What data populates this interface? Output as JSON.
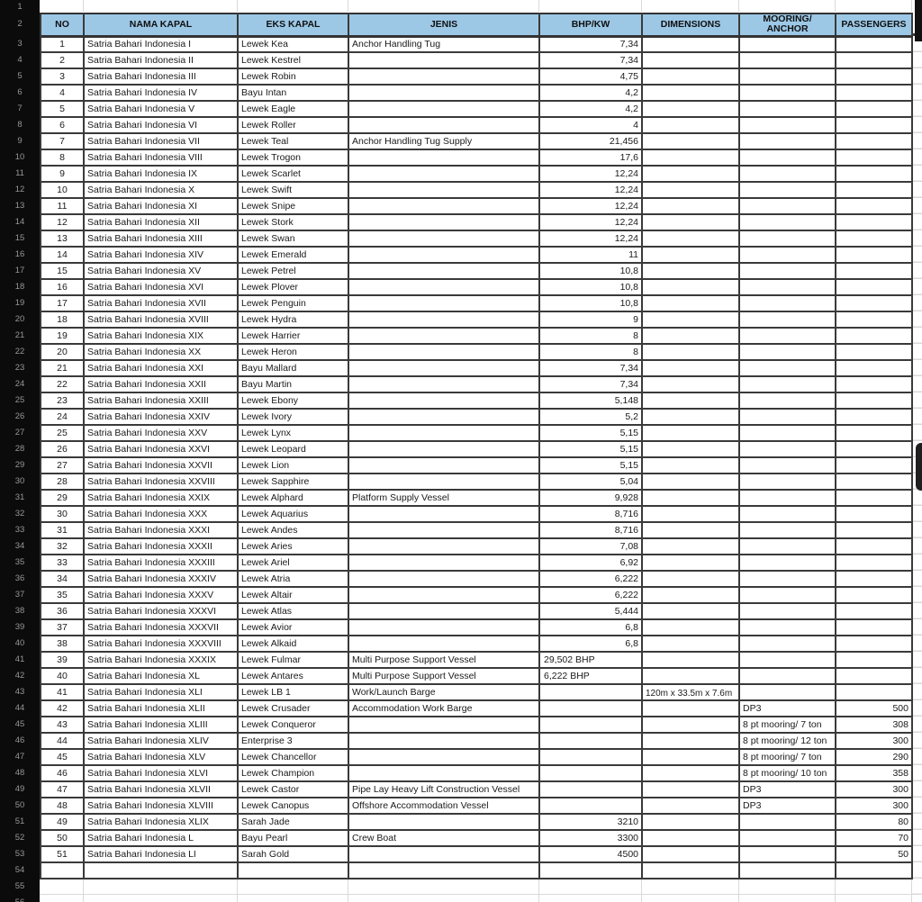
{
  "sheet": {
    "gutter_rows": [
      "1",
      "2",
      "3",
      "4",
      "5",
      "6",
      "7",
      "8",
      "9",
      "10",
      "11",
      "12",
      "13",
      "14",
      "15",
      "16",
      "17",
      "18",
      "19",
      "20",
      "21",
      "22",
      "23",
      "24",
      "25",
      "26",
      "27",
      "28",
      "29",
      "30",
      "31",
      "32",
      "33",
      "34",
      "35",
      "36",
      "37",
      "38",
      "39",
      "40",
      "41",
      "42",
      "43",
      "44",
      "45",
      "46",
      "47",
      "48",
      "49",
      "50",
      "51",
      "52",
      "53",
      "54",
      "55",
      "56"
    ],
    "header": {
      "no": "NO",
      "nama": "NAMA KAPAL",
      "eks": "EKS KAPAL",
      "jenis": "JENIS",
      "bhp": "BHP/KW",
      "dimensions": "DIMENSIONS",
      "mooring": "MOORING/\nANCHOR",
      "passengers": "PASSENGERS"
    },
    "colors": {
      "header_fill": "#9cc8e6",
      "grid_border": "#3a3a3a",
      "gutter_bg": "#0b0b0b"
    },
    "rows": [
      {
        "no": "1",
        "nama": "Satria Bahari Indonesia I",
        "eks": "Lewek Kea",
        "jenis": "Anchor Handling Tug",
        "bhp": "7,34"
      },
      {
        "no": "2",
        "nama": "Satria Bahari Indonesia II",
        "eks": "Lewek Kestrel",
        "bhp": "7,34"
      },
      {
        "no": "3",
        "nama": "Satria Bahari Indonesia III",
        "eks": "Lewek Robin",
        "bhp": "4,75"
      },
      {
        "no": "4",
        "nama": "Satria Bahari Indonesia IV",
        "eks": "Bayu Intan",
        "bhp": "4,2"
      },
      {
        "no": "5",
        "nama": "Satria Bahari Indonesia V",
        "eks": "Lewek Eagle",
        "bhp": "4,2"
      },
      {
        "no": "6",
        "nama": "Satria Bahari Indonesia VI",
        "eks": "Lewek Roller",
        "bhp": "4"
      },
      {
        "no": "7",
        "nama": "Satria Bahari Indonesia VII",
        "eks": "Lewek Teal",
        "jenis": "Anchor Handling Tug Supply",
        "bhp": "21,456"
      },
      {
        "no": "8",
        "nama": "Satria Bahari Indonesia VIII",
        "eks": "Lewek Trogon",
        "bhp": "17,6"
      },
      {
        "no": "9",
        "nama": "Satria Bahari Indonesia IX",
        "eks": "Lewek Scarlet",
        "bhp": "12,24"
      },
      {
        "no": "10",
        "nama": "Satria Bahari Indonesia X",
        "eks": "Lewek Swift",
        "bhp": "12,24"
      },
      {
        "no": "11",
        "nama": "Satria Bahari Indonesia XI",
        "eks": "Lewek Snipe",
        "bhp": "12,24"
      },
      {
        "no": "12",
        "nama": "Satria Bahari Indonesia XII",
        "eks": "Lewek Stork",
        "bhp": "12,24"
      },
      {
        "no": "13",
        "nama": "Satria Bahari Indonesia XIII",
        "eks": "Lewek Swan",
        "bhp": "12,24"
      },
      {
        "no": "14",
        "nama": "Satria Bahari Indonesia XIV",
        "eks": "Lewek Emerald",
        "bhp": "11"
      },
      {
        "no": "15",
        "nama": "Satria Bahari Indonesia XV",
        "eks": "Lewek Petrel",
        "bhp": "10,8"
      },
      {
        "no": "16",
        "nama": "Satria Bahari Indonesia XVI",
        "eks": "Lewek Plover",
        "bhp": "10,8"
      },
      {
        "no": "17",
        "nama": "Satria Bahari Indonesia XVII",
        "eks": "Lewek Penguin",
        "bhp": "10,8"
      },
      {
        "no": "18",
        "nama": "Satria Bahari Indonesia XVIII",
        "eks": "Lewek Hydra",
        "bhp": "9"
      },
      {
        "no": "19",
        "nama": "Satria Bahari Indonesia XIX",
        "eks": "Lewek Harrier",
        "bhp": "8"
      },
      {
        "no": "20",
        "nama": "Satria Bahari Indonesia XX",
        "eks": "Lewek Heron",
        "bhp": "8"
      },
      {
        "no": "21",
        "nama": "Satria Bahari Indonesia XXI",
        "eks": "Bayu Mallard",
        "bhp": "7,34"
      },
      {
        "no": "22",
        "nama": "Satria Bahari Indonesia XXII",
        "eks": "Bayu Martin",
        "bhp": "7,34"
      },
      {
        "no": "23",
        "nama": "Satria Bahari Indonesia XXIII",
        "eks": "Lewek Ebony",
        "bhp": "5,148"
      },
      {
        "no": "24",
        "nama": "Satria Bahari Indonesia XXIV",
        "eks": "Lewek Ivory",
        "bhp": "5,2"
      },
      {
        "no": "25",
        "nama": "Satria Bahari Indonesia XXV",
        "eks": "Lewek Lynx",
        "bhp": "5,15"
      },
      {
        "no": "26",
        "nama": "Satria Bahari Indonesia XXVI",
        "eks": "Lewek Leopard",
        "bhp": "5,15"
      },
      {
        "no": "27",
        "nama": "Satria Bahari Indonesia XXVII",
        "eks": "Lewek Lion",
        "bhp": "5,15"
      },
      {
        "no": "28",
        "nama": "Satria Bahari Indonesia XXVIII",
        "eks": "Lewek Sapphire",
        "bhp": "5,04"
      },
      {
        "no": "29",
        "nama": "Satria Bahari Indonesia XXIX",
        "eks": "Lewek Alphard",
        "jenis": "Platform Supply Vessel",
        "bhp": "9,928"
      },
      {
        "no": "30",
        "nama": "Satria Bahari Indonesia XXX",
        "eks": "Lewek Aquarius",
        "bhp": "8,716"
      },
      {
        "no": "31",
        "nama": "Satria Bahari Indonesia XXXI",
        "eks": "Lewek Andes",
        "bhp": "8,716"
      },
      {
        "no": "32",
        "nama": "Satria Bahari Indonesia XXXII",
        "eks": "Lewek Aries",
        "bhp": "7,08"
      },
      {
        "no": "33",
        "nama": "Satria Bahari Indonesia XXXIII",
        "eks": "Lewek Ariel",
        "bhp": "6,92"
      },
      {
        "no": "34",
        "nama": "Satria Bahari Indonesia XXXIV",
        "eks": "Lewek Atria",
        "bhp": "6,222"
      },
      {
        "no": "35",
        "nama": "Satria Bahari Indonesia XXXV",
        "eks": "Lewek Altair",
        "bhp": "6,222"
      },
      {
        "no": "36",
        "nama": "Satria Bahari Indonesia XXXVI",
        "eks": "Lewek Atlas",
        "bhp": "5,444"
      },
      {
        "no": "37",
        "nama": "Satria Bahari Indonesia XXXVII",
        "eks": "Lewek Avior",
        "bhp": "6,8"
      },
      {
        "no": "38",
        "nama": "Satria Bahari Indonesia XXXVIII",
        "eks": "Lewek Alkaid",
        "bhp": "6,8"
      },
      {
        "no": "39",
        "nama": "Satria Bahari Indonesia XXXIX",
        "eks": "Lewek Fulmar",
        "jenis": "Multi Purpose Support Vessel",
        "bhp": "29,502 BHP",
        "bhp_align": "left"
      },
      {
        "no": "40",
        "nama": "Satria Bahari Indonesia XL",
        "eks": "Lewek Antares",
        "jenis": "Multi Purpose Support Vessel",
        "bhp": "6,222 BHP",
        "bhp_align": "left"
      },
      {
        "no": "41",
        "nama": "Satria Bahari Indonesia XLI",
        "eks": "Lewek LB 1",
        "jenis": "Work/Launch Barge",
        "dimensions": "120m x 33.5m x 7.6m",
        "dim_overflow": true
      },
      {
        "no": "42",
        "nama": "Satria Bahari Indonesia XLII",
        "eks": "Lewek Crusader",
        "jenis": "Accommodation Work Barge",
        "mooring": "DP3",
        "passengers": "500"
      },
      {
        "no": "43",
        "nama": "Satria Bahari Indonesia XLIII",
        "eks": "Lewek Conqueror",
        "mooring": "8 pt mooring/ 7 ton",
        "passengers": "308"
      },
      {
        "no": "44",
        "nama": "Satria Bahari Indonesia XLIV",
        "eks": "Enterprise 3",
        "mooring": "8 pt mooring/ 12 ton",
        "passengers": "300"
      },
      {
        "no": "45",
        "nama": "Satria Bahari Indonesia XLV",
        "eks": "Lewek Chancellor",
        "mooring": "8 pt mooring/ 7 ton",
        "passengers": "290"
      },
      {
        "no": "46",
        "nama": "Satria Bahari Indonesia XLVI",
        "eks": "Lewek Champion",
        "mooring": "8 pt mooring/ 10 ton",
        "passengers": "358"
      },
      {
        "no": "47",
        "nama": "Satria Bahari Indonesia XLVII",
        "eks": "Lewek Castor",
        "jenis": "Pipe Lay Heavy Lift Construction Vessel",
        "mooring": "DP3",
        "passengers": "300"
      },
      {
        "no": "48",
        "nama": "Satria Bahari Indonesia XLVIII",
        "eks": "Lewek Canopus",
        "jenis": "Offshore Accommodation Vessel",
        "mooring": "DP3",
        "passengers": "300"
      },
      {
        "no": "49",
        "nama": "Satria Bahari Indonesia XLIX",
        "eks": "Sarah Jade",
        "bhp": "3210",
        "passengers": "80"
      },
      {
        "no": "50",
        "nama": "Satria Bahari Indonesia L",
        "eks": "Bayu Pearl",
        "jenis": "Crew Boat",
        "bhp": "3300",
        "passengers": "70"
      },
      {
        "no": "51",
        "nama": "Satria Bahari Indonesia LI",
        "eks": "Sarah Gold",
        "bhp": "4500",
        "passengers": "50"
      }
    ],
    "trailing_empty_rows": 1
  }
}
